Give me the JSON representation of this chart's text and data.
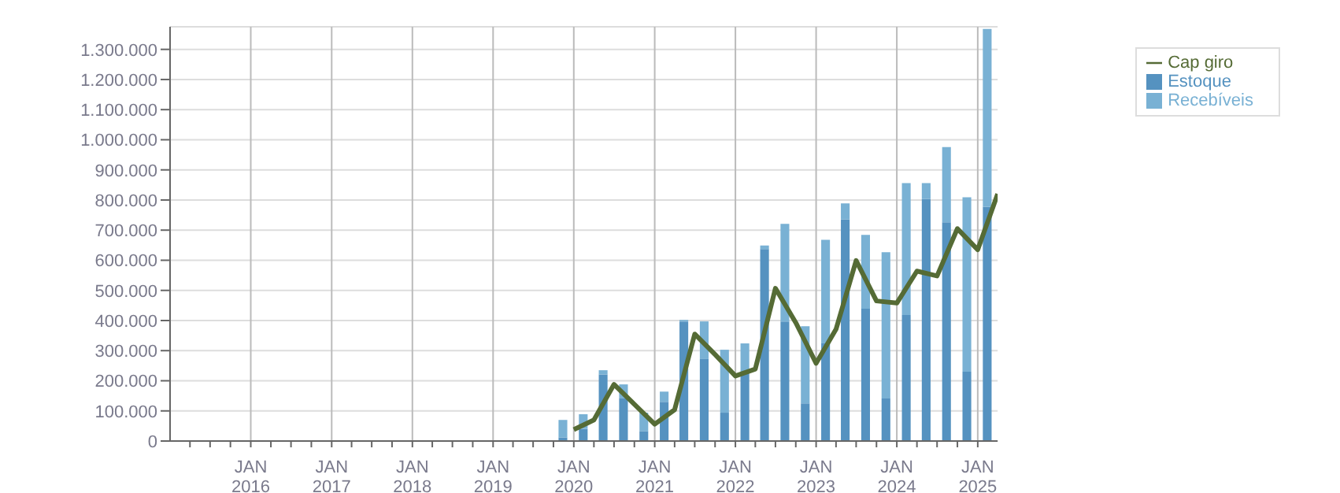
{
  "chart_data": {
    "type": "bar",
    "stacked": true,
    "x": [
      "2019-11-15",
      "2020-02-15",
      "2020-05-15",
      "2020-08-15",
      "2020-11-15",
      "2021-02-15",
      "2021-05-15",
      "2021-08-15",
      "2021-11-15",
      "2022-02-15",
      "2022-05-15",
      "2022-08-15",
      "2022-11-15",
      "2023-02-15",
      "2023-05-15",
      "2023-08-15",
      "2023-11-15",
      "2024-02-15",
      "2024-05-15",
      "2024-08-15",
      "2024-11-15",
      "2025-02-15"
    ],
    "series": [
      {
        "name": "Estoque",
        "color": "#5592c0",
        "values": [
          12000,
          40000,
          221000,
          143000,
          33000,
          130000,
          397000,
          272000,
          94000,
          225000,
          637000,
          397000,
          125000,
          324000,
          736000,
          439000,
          141000,
          418000,
          804000,
          726000,
          230000,
          778000
        ]
      },
      {
        "name": "Recebíveis",
        "color": "#79b1d4",
        "values": [
          58000,
          49000,
          14000,
          45000,
          61000,
          34000,
          5000,
          125000,
          209000,
          99000,
          12000,
          324000,
          256000,
          344000,
          53000,
          245000,
          486000,
          438000,
          52000,
          250000,
          579000,
          590000
        ]
      },
      {
        "name": "Cap giro",
        "type": "line",
        "color": "#556b35",
        "x": [
          "2020-01",
          "2020-04",
          "2020-07",
          "2020-10",
          "2021-01",
          "2021-04",
          "2021-07",
          "2021-10",
          "2022-01",
          "2022-04",
          "2022-07",
          "2022-10",
          "2023-01",
          "2023-04",
          "2023-07",
          "2023-10",
          "2024-01",
          "2024-04",
          "2024-07",
          "2024-10",
          "2025-01",
          "2025-04"
        ],
        "values": [
          38000,
          70000,
          188000,
          122000,
          56000,
          104000,
          355000,
          287000,
          216000,
          239000,
          507000,
          393000,
          258000,
          371000,
          599000,
          465000,
          458000,
          564000,
          548000,
          705000,
          635000,
          820000
        ]
      }
    ],
    "xlim": [
      "2015-01",
      "2025-04"
    ],
    "xticks": [
      {
        "value": "2015-04",
        "label": null
      },
      {
        "value": "2015-07",
        "label": null
      },
      {
        "value": "2015-10",
        "label": null
      },
      {
        "value": "2016-01",
        "label": "JAN\n2016"
      },
      {
        "value": "2016-04",
        "label": null
      },
      {
        "value": "2016-07",
        "label": null
      },
      {
        "value": "2016-10",
        "label": null
      },
      {
        "value": "2017-01",
        "label": "JAN\n2017"
      },
      {
        "value": "2017-04",
        "label": null
      },
      {
        "value": "2017-07",
        "label": null
      },
      {
        "value": "2017-10",
        "label": null
      },
      {
        "value": "2018-01",
        "label": "JAN\n2018"
      },
      {
        "value": "2018-04",
        "label": null
      },
      {
        "value": "2018-07",
        "label": null
      },
      {
        "value": "2018-10",
        "label": null
      },
      {
        "value": "2019-01",
        "label": "JAN\n2019"
      },
      {
        "value": "2019-04",
        "label": null
      },
      {
        "value": "2019-07",
        "label": null
      },
      {
        "value": "2019-10",
        "label": null
      },
      {
        "value": "2020-01",
        "label": "JAN\n2020"
      },
      {
        "value": "2020-04",
        "label": null
      },
      {
        "value": "2020-07",
        "label": null
      },
      {
        "value": "2020-10",
        "label": null
      },
      {
        "value": "2021-01",
        "label": "JAN\n2021"
      },
      {
        "value": "2021-04",
        "label": null
      },
      {
        "value": "2021-07",
        "label": null
      },
      {
        "value": "2021-10",
        "label": null
      },
      {
        "value": "2022-01",
        "label": "JAN\n2022"
      },
      {
        "value": "2022-04",
        "label": null
      },
      {
        "value": "2022-07",
        "label": null
      },
      {
        "value": "2022-10",
        "label": null
      },
      {
        "value": "2023-01",
        "label": "JAN\n2023"
      },
      {
        "value": "2023-04",
        "label": null
      },
      {
        "value": "2023-07",
        "label": null
      },
      {
        "value": "2023-10",
        "label": null
      },
      {
        "value": "2024-01",
        "label": "JAN\n2024"
      },
      {
        "value": "2024-04",
        "label": null
      },
      {
        "value": "2024-07",
        "label": null
      },
      {
        "value": "2024-10",
        "label": null
      },
      {
        "value": "2025-01",
        "label": "JAN\n2025"
      }
    ],
    "ylim": [
      0,
      1375000
    ],
    "yticks": [
      {
        "value": 0,
        "label": "0"
      },
      {
        "value": 100000,
        "label": "100.000"
      },
      {
        "value": 200000,
        "label": "200.000"
      },
      {
        "value": 300000,
        "label": "300.000"
      },
      {
        "value": 400000,
        "label": "400.000"
      },
      {
        "value": 500000,
        "label": "500.000"
      },
      {
        "value": 600000,
        "label": "600.000"
      },
      {
        "value": 700000,
        "label": "700.000"
      },
      {
        "value": 800000,
        "label": "800.000"
      },
      {
        "value": 900000,
        "label": "900.000"
      },
      {
        "value": 1000000,
        "label": "1.000.000"
      },
      {
        "value": 1100000,
        "label": "1.100.000"
      },
      {
        "value": 1200000,
        "label": "1.200.000"
      },
      {
        "value": 1300000,
        "label": "1.300.000"
      }
    ],
    "grid": true,
    "legend": "top right",
    "marker": "none",
    "line_style": "solid"
  }
}
